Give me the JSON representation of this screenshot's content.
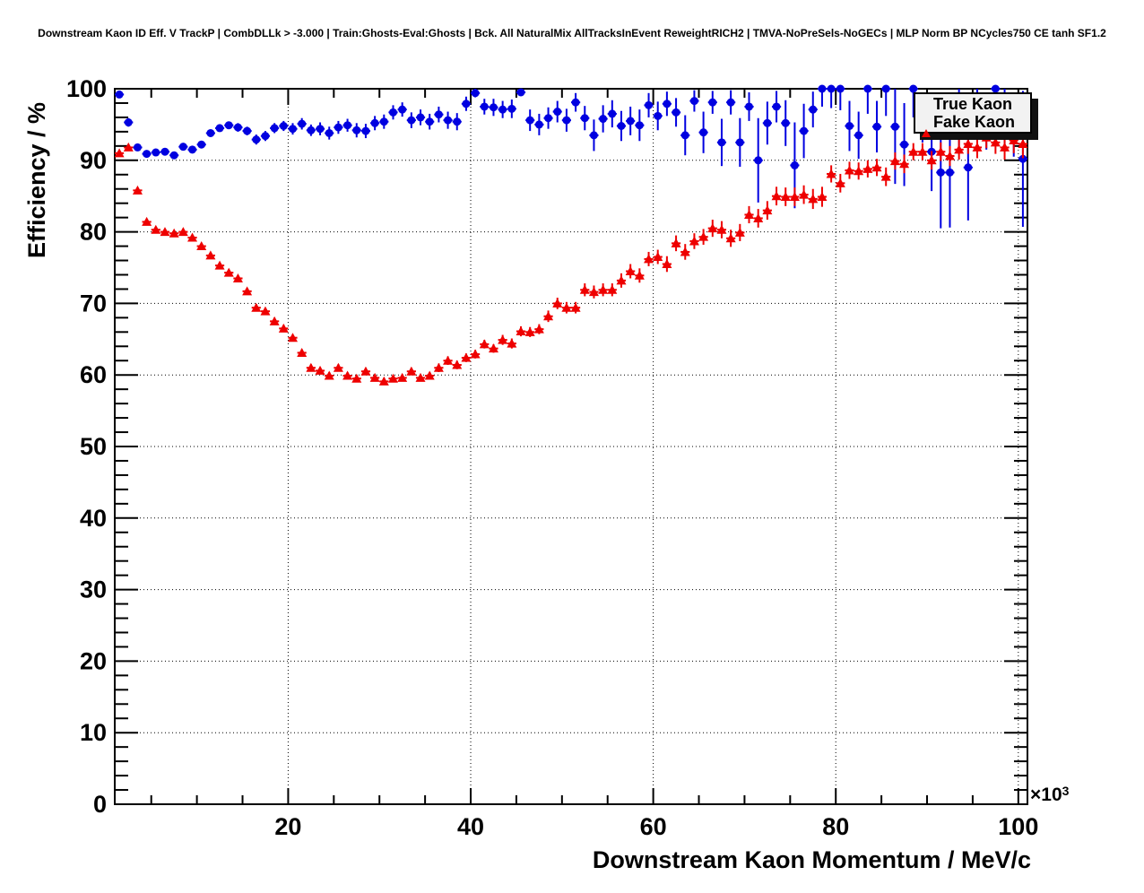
{
  "title": "Downstream Kaon ID Eff. V TrackP | CombDLLk > -3.000 | Train:Ghosts-Eval:Ghosts | Bck. All NaturalMix AllTracksInEvent ReweightRICH2 | TMVA-NoPreSels-NoGECs | MLP Norm BP NCycles750 CE tanh SF1.2",
  "axes": {
    "x": {
      "label": "Downstream Kaon Momentum / MeV/c",
      "exponent_base": "×10",
      "exponent_power": "3",
      "tick_values": [
        20,
        40,
        60,
        80,
        100
      ],
      "tick_labels": [
        "20",
        "40",
        "60",
        "80",
        "100"
      ],
      "minor_step": 5,
      "range": [
        1,
        101
      ]
    },
    "y": {
      "label": "Efficiency / %",
      "tick_values": [
        0,
        10,
        20,
        30,
        40,
        50,
        60,
        70,
        80,
        90,
        100
      ],
      "tick_labels": [
        "0",
        "10",
        "20",
        "30",
        "40",
        "50",
        "60",
        "70",
        "80",
        "90",
        "100"
      ],
      "minor_step": 2,
      "range": [
        0,
        100
      ]
    }
  },
  "legend": {
    "items": [
      {
        "label": "True Kaon",
        "marker": "circle",
        "color": "#0000e0"
      },
      {
        "label": "Fake Kaon",
        "marker": "triangle",
        "color": "#ee0000"
      }
    ]
  },
  "chart_data": {
    "type": "scatter",
    "title": "Downstream Kaon ID Eff. V TrackP",
    "xlabel": "Downstream Kaon Momentum / MeV/c (x10^3)",
    "ylabel": "Efficiency / %",
    "x_range": [
      1,
      101
    ],
    "y_range": [
      0,
      100
    ],
    "grid": true,
    "legend_position": "top-right",
    "series": [
      {
        "name": "True Kaon",
        "color": "#0000e0",
        "marker": "circle",
        "points_format": [
          "momentum_10e3_MeVc",
          "efficiency_pct",
          "error_pct"
        ],
        "points": [
          [
            1.5,
            99.2,
            0.5
          ],
          [
            2.5,
            95.3,
            0.6
          ],
          [
            3.5,
            91.8,
            0.5
          ],
          [
            4.5,
            90.9,
            0.5
          ],
          [
            5.5,
            91.1,
            0.5
          ],
          [
            6.5,
            91.2,
            0.5
          ],
          [
            7.5,
            90.7,
            0.5
          ],
          [
            8.5,
            91.9,
            0.5
          ],
          [
            9.5,
            91.5,
            0.5
          ],
          [
            10.5,
            92.2,
            0.5
          ],
          [
            11.5,
            93.8,
            0.5
          ],
          [
            12.5,
            94.5,
            0.5
          ],
          [
            13.5,
            94.9,
            0.5
          ],
          [
            14.5,
            94.6,
            0.6
          ],
          [
            15.5,
            94.1,
            0.6
          ],
          [
            16.5,
            92.9,
            0.7
          ],
          [
            17.5,
            93.4,
            0.7
          ],
          [
            18.5,
            94.5,
            0.7
          ],
          [
            19.5,
            94.8,
            0.7
          ],
          [
            20.5,
            94.4,
            0.8
          ],
          [
            21.5,
            95.1,
            0.8
          ],
          [
            22.5,
            94.2,
            0.8
          ],
          [
            23.5,
            94.4,
            0.9
          ],
          [
            24.5,
            93.8,
            0.9
          ],
          [
            25.5,
            94.6,
            0.9
          ],
          [
            26.5,
            94.9,
            0.9
          ],
          [
            27.5,
            94.2,
            1.0
          ],
          [
            28.5,
            94.1,
            1.0
          ],
          [
            29.5,
            95.2,
            1.0
          ],
          [
            30.5,
            95.4,
            1.0
          ],
          [
            31.5,
            96.7,
            1.0
          ],
          [
            32.5,
            97.1,
            1.0
          ],
          [
            33.5,
            95.6,
            1.1
          ],
          [
            34.5,
            96.0,
            1.1
          ],
          [
            35.5,
            95.4,
            1.1
          ],
          [
            36.5,
            96.4,
            1.1
          ],
          [
            37.5,
            95.6,
            1.2
          ],
          [
            38.5,
            95.4,
            1.2
          ],
          [
            39.5,
            97.9,
            1.0
          ],
          [
            40.5,
            99.4,
            0.6
          ],
          [
            41.5,
            97.5,
            1.1
          ],
          [
            42.5,
            97.4,
            1.2
          ],
          [
            43.5,
            97.1,
            1.2
          ],
          [
            44.5,
            97.2,
            1.3
          ],
          [
            45.5,
            99.5,
            0.5
          ],
          [
            46.5,
            95.6,
            1.5
          ],
          [
            47.5,
            95.0,
            1.5
          ],
          [
            48.5,
            95.9,
            1.5
          ],
          [
            49.5,
            96.8,
            1.5
          ],
          [
            50.5,
            95.6,
            1.6
          ],
          [
            51.5,
            98.1,
            1.3
          ],
          [
            52.5,
            95.9,
            1.7
          ],
          [
            53.5,
            93.5,
            2.2
          ],
          [
            54.5,
            95.8,
            1.9
          ],
          [
            55.5,
            96.5,
            1.9
          ],
          [
            56.5,
            94.8,
            2.1
          ],
          [
            57.5,
            95.5,
            2.0
          ],
          [
            58.5,
            94.9,
            2.2
          ],
          [
            59.5,
            97.7,
            1.7
          ],
          [
            60.5,
            96.2,
            2.0
          ],
          [
            61.5,
            97.9,
            1.7
          ],
          [
            62.5,
            96.7,
            2.0
          ],
          [
            63.5,
            93.5,
            2.8
          ],
          [
            64.5,
            98.3,
            1.5
          ],
          [
            65.5,
            93.9,
            2.9
          ],
          [
            66.5,
            98.1,
            1.6
          ],
          [
            67.5,
            92.5,
            3.3
          ],
          [
            68.5,
            98.1,
            1.7
          ],
          [
            69.5,
            92.5,
            3.4
          ],
          [
            70.5,
            97.5,
            2.0
          ],
          [
            71.5,
            90.0,
            5.9
          ],
          [
            72.5,
            95.2,
            3.0
          ],
          [
            73.5,
            97.5,
            2.2
          ],
          [
            74.5,
            95.2,
            3.2
          ],
          [
            75.5,
            89.3,
            6.0
          ],
          [
            76.5,
            94.1,
            3.8
          ],
          [
            77.5,
            97.1,
            2.5
          ],
          [
            78.5,
            100,
            2.5
          ],
          [
            79.5,
            100,
            2.7
          ],
          [
            80.5,
            100,
            3.0
          ],
          [
            81.5,
            94.8,
            3.5
          ],
          [
            82.5,
            93.5,
            3.3
          ],
          [
            83.5,
            100,
            3.5
          ],
          [
            84.5,
            94.7,
            3.6
          ],
          [
            85.5,
            100,
            3.8
          ],
          [
            86.5,
            94.7,
            8.0
          ],
          [
            87.5,
            92.2,
            5.8
          ],
          [
            88.5,
            100,
            4.0
          ],
          [
            89.5,
            96.0,
            3.5
          ],
          [
            90.5,
            91.2,
            5.5
          ],
          [
            91.5,
            88.3,
            7.8
          ],
          [
            92.5,
            88.3,
            7.7
          ],
          [
            93.5,
            96.0,
            4.0
          ],
          [
            94.5,
            89.0,
            7.4
          ],
          [
            95.5,
            96.5,
            3.5
          ],
          [
            96.5,
            95.5,
            4.0
          ],
          [
            97.5,
            100,
            4.5
          ],
          [
            98.5,
            96.0,
            4.0
          ],
          [
            99.5,
            95.0,
            4.5
          ],
          [
            100.5,
            90.2,
            9.5
          ]
        ]
      },
      {
        "name": "Fake Kaon",
        "color": "#ee0000",
        "marker": "triangle",
        "points_format": [
          "momentum_10e3_MeVc",
          "efficiency_pct",
          "error_pct"
        ],
        "points": [
          [
            1.5,
            91.0,
            0.4
          ],
          [
            2.5,
            91.8,
            0.4
          ],
          [
            3.5,
            85.8,
            0.4
          ],
          [
            4.5,
            81.4,
            0.4
          ],
          [
            5.5,
            80.3,
            0.4
          ],
          [
            6.5,
            80.0,
            0.4
          ],
          [
            7.5,
            79.8,
            0.4
          ],
          [
            8.5,
            80.0,
            0.4
          ],
          [
            9.5,
            79.2,
            0.4
          ],
          [
            10.5,
            78.0,
            0.4
          ],
          [
            11.5,
            76.7,
            0.4
          ],
          [
            12.5,
            75.3,
            0.4
          ],
          [
            13.5,
            74.3,
            0.4
          ],
          [
            14.5,
            73.5,
            0.4
          ],
          [
            15.5,
            71.7,
            0.4
          ],
          [
            16.5,
            69.4,
            0.5
          ],
          [
            17.5,
            68.9,
            0.5
          ],
          [
            18.5,
            67.5,
            0.5
          ],
          [
            19.5,
            66.5,
            0.5
          ],
          [
            20.5,
            65.2,
            0.5
          ],
          [
            21.5,
            63.1,
            0.5
          ],
          [
            22.5,
            61.0,
            0.5
          ],
          [
            23.5,
            60.6,
            0.5
          ],
          [
            24.5,
            59.9,
            0.5
          ],
          [
            25.5,
            61.0,
            0.5
          ],
          [
            26.5,
            59.9,
            0.5
          ],
          [
            27.5,
            59.5,
            0.5
          ],
          [
            28.5,
            60.5,
            0.5
          ],
          [
            29.5,
            59.6,
            0.5
          ],
          [
            30.5,
            59.1,
            0.5
          ],
          [
            31.5,
            59.5,
            0.5
          ],
          [
            32.5,
            59.6,
            0.5
          ],
          [
            33.5,
            60.5,
            0.5
          ],
          [
            34.5,
            59.6,
            0.5
          ],
          [
            35.5,
            59.9,
            0.5
          ],
          [
            36.5,
            61.0,
            0.6
          ],
          [
            37.5,
            62.0,
            0.6
          ],
          [
            38.5,
            61.4,
            0.6
          ],
          [
            39.5,
            62.4,
            0.6
          ],
          [
            40.5,
            62.9,
            0.6
          ],
          [
            41.5,
            64.3,
            0.6
          ],
          [
            42.5,
            63.7,
            0.6
          ],
          [
            43.5,
            64.9,
            0.7
          ],
          [
            44.5,
            64.4,
            0.7
          ],
          [
            45.5,
            66.1,
            0.7
          ],
          [
            46.5,
            66.0,
            0.7
          ],
          [
            47.5,
            66.4,
            0.7
          ],
          [
            48.5,
            68.2,
            0.8
          ],
          [
            49.5,
            70.0,
            0.8
          ],
          [
            50.5,
            69.4,
            0.8
          ],
          [
            51.5,
            69.4,
            0.8
          ],
          [
            52.5,
            71.9,
            0.9
          ],
          [
            53.5,
            71.6,
            0.9
          ],
          [
            54.5,
            71.9,
            0.9
          ],
          [
            55.5,
            71.9,
            0.9
          ],
          [
            56.5,
            73.2,
            1.0
          ],
          [
            57.5,
            74.5,
            1.0
          ],
          [
            58.5,
            73.9,
            1.0
          ],
          [
            59.5,
            76.2,
            1.0
          ],
          [
            60.5,
            76.5,
            1.0
          ],
          [
            61.5,
            75.5,
            1.1
          ],
          [
            62.5,
            78.4,
            1.1
          ],
          [
            63.5,
            77.2,
            1.1
          ],
          [
            64.5,
            78.7,
            1.1
          ],
          [
            65.5,
            79.3,
            1.1
          ],
          [
            66.5,
            80.5,
            1.2
          ],
          [
            67.5,
            80.3,
            1.2
          ],
          [
            68.5,
            79.1,
            1.2
          ],
          [
            69.5,
            79.9,
            1.2
          ],
          [
            70.5,
            82.4,
            1.2
          ],
          [
            71.5,
            81.9,
            1.3
          ],
          [
            72.5,
            83.0,
            1.3
          ],
          [
            73.5,
            85.0,
            1.3
          ],
          [
            74.5,
            84.9,
            1.3
          ],
          [
            75.5,
            84.9,
            1.3
          ],
          [
            76.5,
            85.2,
            1.3
          ],
          [
            77.5,
            84.6,
            1.4
          ],
          [
            78.5,
            84.9,
            1.4
          ],
          [
            79.5,
            88.1,
            1.2
          ],
          [
            80.5,
            86.8,
            1.3
          ],
          [
            81.5,
            88.6,
            1.2
          ],
          [
            82.5,
            88.5,
            1.2
          ],
          [
            83.5,
            88.8,
            1.2
          ],
          [
            84.5,
            89.0,
            1.2
          ],
          [
            85.5,
            87.7,
            1.3
          ],
          [
            86.5,
            89.9,
            1.2
          ],
          [
            87.5,
            89.5,
            1.3
          ],
          [
            88.5,
            91.2,
            1.2
          ],
          [
            89.5,
            91.2,
            1.2
          ],
          [
            90.5,
            90.0,
            1.3
          ],
          [
            91.5,
            91.2,
            1.3
          ],
          [
            92.5,
            90.6,
            1.4
          ],
          [
            93.5,
            91.5,
            1.4
          ],
          [
            94.5,
            92.3,
            1.4
          ],
          [
            95.5,
            91.8,
            1.5
          ],
          [
            96.5,
            93.2,
            1.5
          ],
          [
            97.5,
            92.5,
            1.6
          ],
          [
            98.5,
            91.8,
            1.7
          ],
          [
            99.5,
            92.8,
            1.8
          ],
          [
            100.5,
            92.3,
            2.0
          ]
        ]
      }
    ]
  }
}
